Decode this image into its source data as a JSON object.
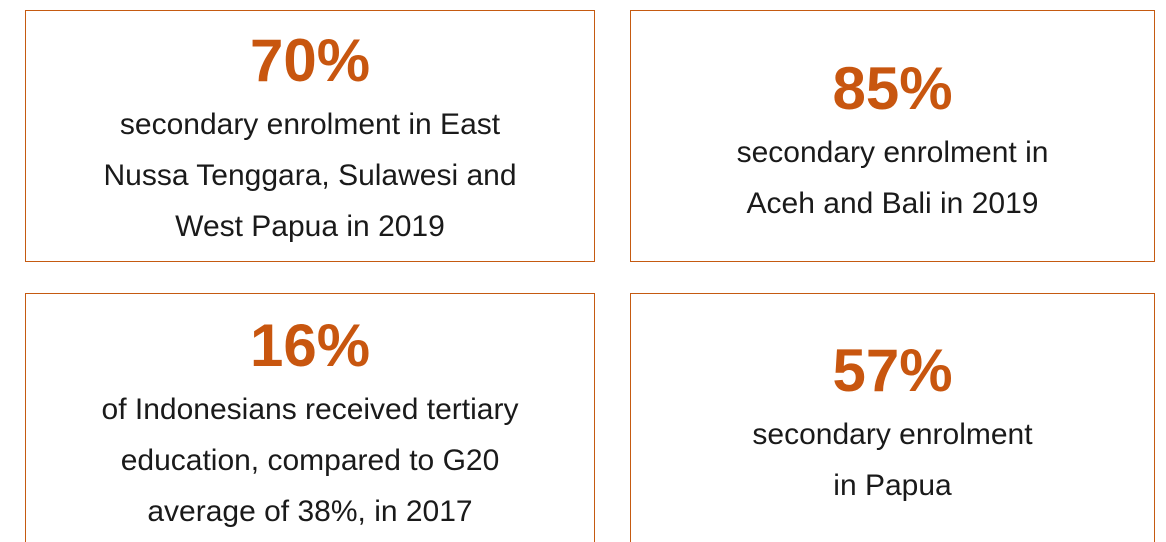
{
  "stats": [
    {
      "figure": "70%",
      "lines": [
        "secondary enrolment in East",
        "Nussa Tenggara, Sulawesi and",
        "West Papua in 2019"
      ]
    },
    {
      "figure": "85%",
      "lines": [
        "secondary enrolment in",
        "Aceh and Bali in 2019"
      ]
    },
    {
      "figure": "16%",
      "lines": [
        "of Indonesians received tertiary",
        "education, compared to G20",
        "average of 38%, in 2017"
      ]
    },
    {
      "figure": "57%",
      "lines": [
        "secondary enrolment",
        "in Papua"
      ]
    }
  ]
}
